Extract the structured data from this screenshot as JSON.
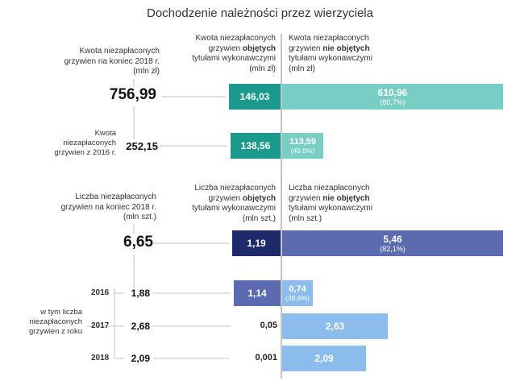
{
  "title": "Dochodzenie należności przez wierzyciela",
  "colors": {
    "teal_dark": "#1a9a8c",
    "teal_light": "#78cdc4",
    "navy": "#1e2a6b",
    "indigo": "#5b6bb0",
    "sky": "#8bbcec",
    "line": "#bfc3d6",
    "divider": "#888888"
  },
  "section1": {
    "left_header": [
      "Kwota niezapłaconych",
      "grzywien na koniec 2018 r.",
      "(mln zł)"
    ],
    "mid_header": [
      "Kwota niezapłaconych",
      "grzywien ",
      "objętych",
      "tytułami wykonawczymi",
      "(mln zł)"
    ],
    "right_header": [
      "Kwota niezapłaconych",
      "grzywien ",
      "nie objętych",
      "tytułami wykonawczymi",
      "(mln zł)"
    ],
    "total": "756,99",
    "row2_label": [
      "Kwota",
      "niezapłaconych",
      "grzywien z 2016 r."
    ],
    "row2_total": "252,15"
  },
  "section2": {
    "left_header": [
      "Liczba niezapłaconych",
      "grzywien na koniec 2018 r.",
      "(mln szt.)"
    ],
    "mid_header": [
      "Liczba niezapłaconych",
      "grzywien ",
      "objętych",
      "tytułami wykonawczymi",
      "(mln szt.)"
    ],
    "right_header": [
      "Liczba niezapłaconych",
      "grzywien ",
      "nie objętych",
      "tytułami wykonawczymi",
      "(mln szt.)"
    ],
    "total": "6,65",
    "group_label": [
      "w tym liczba",
      "niezapłaconych",
      "grzywien z roku"
    ],
    "years": [
      "2016",
      "2017",
      "2018"
    ],
    "year_totals": [
      "1,88",
      "2,68",
      "2,09"
    ]
  },
  "chart_data": [
    {
      "type": "bar",
      "title": "Dochodzenie należności przez wierzyciela",
      "unit": "mln zł",
      "categories": [
        "Kwota niezapłaconych grzywien na koniec 2018 r.",
        "Kwota niezapłaconych grzywien z 2016 r."
      ],
      "totals": [
        756.99,
        252.15
      ],
      "series": [
        {
          "name": "objętych tytułami wykonawczymi",
          "values": [
            146.03,
            138.56
          ],
          "labels": [
            "146,03",
            "138,56"
          ]
        },
        {
          "name": "nie objętych tytułami wykonawczymi",
          "values": [
            610.96,
            113.59
          ],
          "labels": [
            "610,96",
            "113,59"
          ],
          "shares": [
            "(80,7%)",
            "(45,0%)"
          ]
        }
      ]
    },
    {
      "type": "bar",
      "unit": "mln szt.",
      "categories": [
        "Liczba niezapłaconych grzywien na koniec 2018 r.",
        "2016",
        "2017",
        "2018"
      ],
      "totals": [
        6.65,
        1.88,
        2.68,
        2.09
      ],
      "series": [
        {
          "name": "objętych tytułami wykonawczymi",
          "values": [
            1.19,
            1.14,
            0.05,
            0.001
          ],
          "labels": [
            "1,19",
            "1,14",
            "0,05",
            "0,001"
          ]
        },
        {
          "name": "nie objętych tytułami wykonawczymi",
          "values": [
            5.46,
            0.74,
            2.63,
            2.09
          ],
          "labels": [
            "5,46",
            "0,74",
            "2,63",
            "2,09"
          ],
          "shares": [
            "(82,1%)",
            "(39,6%)",
            "",
            ""
          ]
        }
      ]
    }
  ]
}
